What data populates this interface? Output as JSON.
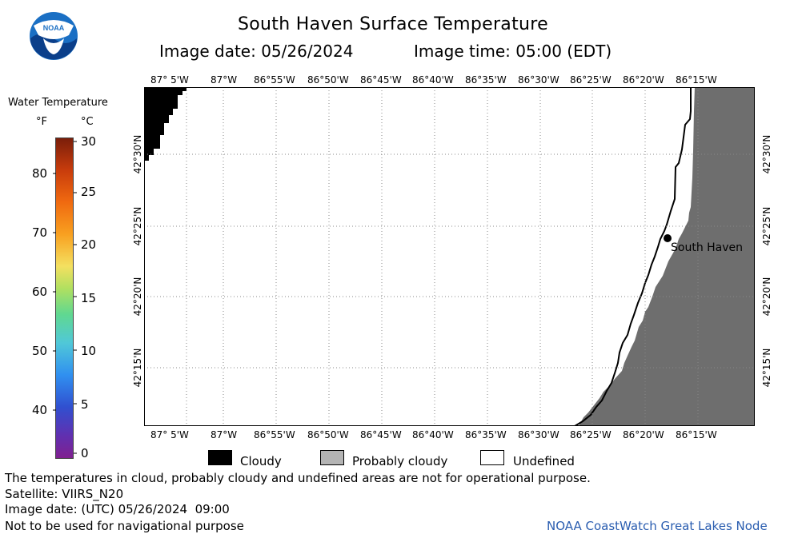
{
  "header": {
    "title": "South Haven Surface Temperature",
    "image_date": "Image date: 05/26/2024",
    "image_time": "Image time: 05:00 (EDT)"
  },
  "logo": {
    "text": "NOAA",
    "icon": "noaa-logo-icon"
  },
  "legend": {
    "heading": "Water Temperature",
    "unit_f": "°F",
    "unit_c": "°C",
    "f_labels": [
      "80",
      "70",
      "60",
      "50",
      "40"
    ],
    "c_labels": [
      "30",
      "25",
      "20",
      "15",
      "10",
      "5",
      "0"
    ]
  },
  "map": {
    "lon_labels_top": [
      "87° 5'W",
      "87°W",
      "86°55'W",
      "86°50'W",
      "86°45'W",
      "86°40'W",
      "86°35'W",
      "86°30'W",
      "86°25'W",
      "86°20'W",
      "86°15'W"
    ],
    "lon_labels_bottom": [
      "87° 5'W",
      "87°W",
      "86°55'W",
      "86°50'W",
      "86°45'W",
      "86°40'W",
      "86°35'W",
      "86°30'W",
      "86°25'W",
      "86°20'W",
      "86°15'W"
    ],
    "lat_labels": [
      "42°30'N",
      "42°25'N",
      "42°20'N",
      "42°15'N"
    ],
    "city": "South Haven",
    "colors": {
      "land": "#6e6e6e",
      "cloud": "#000000",
      "grid": "#888888"
    }
  },
  "categories": [
    {
      "label": "Cloudy",
      "color": "#000000"
    },
    {
      "label": "Probably cloudy",
      "color": "#b4b4b4"
    },
    {
      "label": "Undefined",
      "color": "#ffffff"
    }
  ],
  "footer": {
    "note": "The temperatures in cloud, probably cloudy and undefined areas are not for operational purpose.",
    "satellite": "Satellite: VIIRS_N20",
    "utc_date": "Image date: (UTC) 05/26/2024  09:00",
    "nav_warning": "Not to be used for navigational purpose",
    "credit": "NOAA CoastWatch Great Lakes Node"
  }
}
